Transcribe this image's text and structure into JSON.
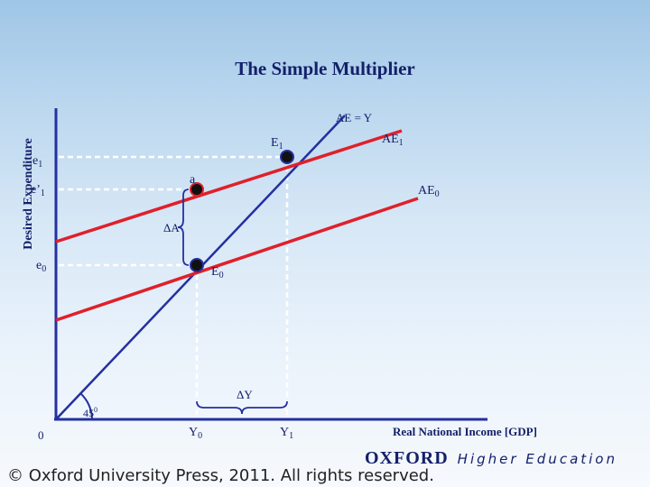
{
  "title": "The Simple Multiplier",
  "y_axis_label": "Desired Expenditure",
  "x_axis_label": "Real National Income [GDP]",
  "labels": {
    "ae_equals_y": "AE = Y",
    "ae1": "AE",
    "ae1_sub": "1",
    "ae0": "AE",
    "ae0_sub": "0",
    "e1_point": "E",
    "e1_point_sub": "1",
    "e0_point": "E",
    "e0_point_sub": "0",
    "a_point": "a",
    "e1_axis": "e",
    "e1_axis_sub": "1",
    "e1prime_axis": "e’",
    "e1prime_axis_sub": "1",
    "e0_axis": "e",
    "e0_axis_sub": "0",
    "delta_a": "ΔA",
    "delta_y": "ΔY",
    "angle": "45",
    "angle_sup": "0",
    "origin": "0",
    "y0": "Y",
    "y0_sub": "0",
    "y1": "Y",
    "y1_sub": "1"
  },
  "footer": {
    "copyright": "© Oxford University Press, 2011. All rights reserved.",
    "logo_oxford": "OXFORD",
    "logo_higher_education": "Higher Education"
  },
  "colors": {
    "axis": "#2430a0",
    "ae_curves": "#e0202a",
    "guide_lines": "#ffffff",
    "points": "#111111",
    "text": "#14206a"
  }
}
